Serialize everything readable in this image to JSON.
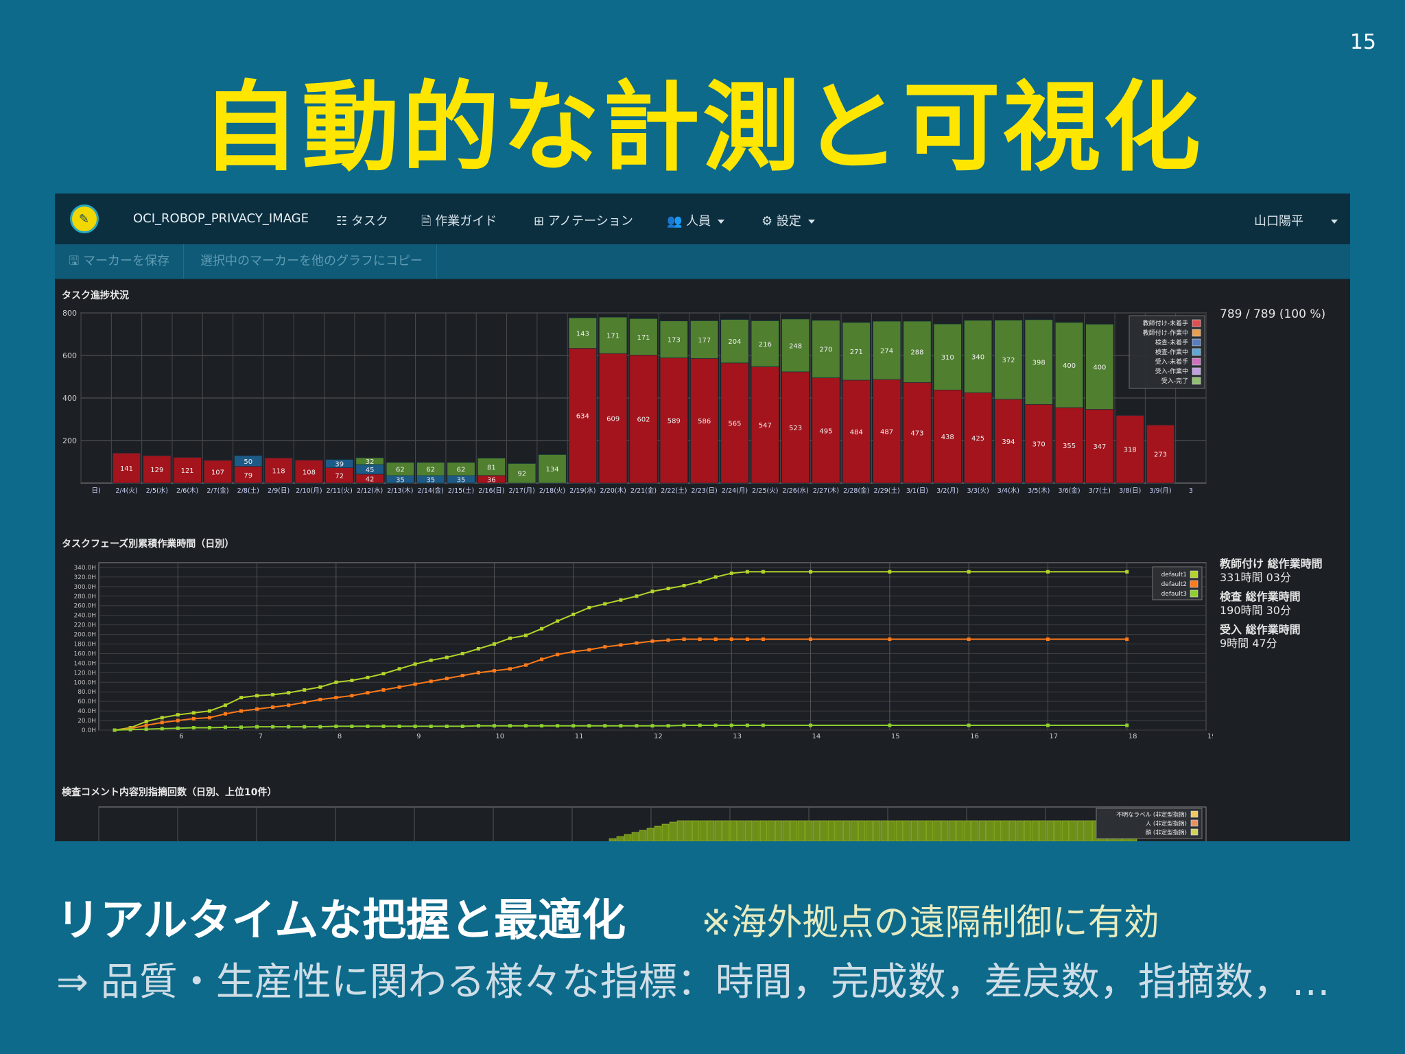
{
  "slide": {
    "number": "15",
    "title": "自動的な計測と可視化",
    "heading": "リアルタイムな把握と最適化",
    "note": "※海外拠点の遠隔制御に有効",
    "line": "⇒ 品質・生産性に関わる様々な指標：時間，完成数，差戻数，指摘数，…"
  },
  "app": {
    "brand": "OCI_ROBOP_PRIVACY_IMAGE",
    "nav": [
      "☷ タスク",
      "🗎 作業ガイド",
      "⊞ アノテーション",
      "👥 人員",
      "⚙ 設定"
    ],
    "user": "山口陽平",
    "toolbar": {
      "save_marker": "🖫 マーカーを保存",
      "copy_marker": "選択中のマーカーを他のグラフにコピー"
    },
    "logo_icon": "pencil-icon"
  },
  "colors": {
    "bar_red": "#a3141c",
    "bar_green": "#4f7f2f",
    "bar_blue": "#1e5a86",
    "line_yellowgreen": "#b3d42a",
    "line_orange": "#ff7a1a",
    "line_green": "#8fcf2e"
  },
  "progress_panel": {
    "title": "タスク進捗状況",
    "summary": "789 / 789 (100 %)"
  },
  "worktime_panel": {
    "title": "タスクフェーズ別累積作業時間（日別）",
    "stats": [
      {
        "label": "教師付け 総作業時間",
        "value": "331時間 03分"
      },
      {
        "label": "検査 総作業時間",
        "value": "190時間 30分"
      },
      {
        "label": "受入 総作業時間",
        "value": "9時間 47分"
      }
    ]
  },
  "comment_panel": {
    "title": "検査コメント内容別指摘回数（日別、上位10件）",
    "legend": [
      "不明なラベル (非定型指摘)",
      "人 (非定型指摘)",
      "顔 (非定型指摘)"
    ]
  },
  "chart_data": [
    {
      "type": "bar",
      "title": "タスク進捗状況",
      "ylim": [
        0,
        800
      ],
      "yticks": [
        200,
        400,
        600,
        800
      ],
      "categories": [
        "日)",
        "2/4(火)",
        "2/5(水)",
        "2/6(木)",
        "2/7(金)",
        "2/8(土)",
        "2/9(日)",
        "2/10(月)",
        "2/11(火)",
        "2/12(水)",
        "2/13(木)",
        "2/14(金)",
        "2/15(土)",
        "2/16(日)",
        "2/17(月)",
        "2/18(火)",
        "2/19(水)",
        "2/20(木)",
        "2/21(金)",
        "2/22(土)",
        "2/23(日)",
        "2/24(月)",
        "2/25(火)",
        "2/26(水)",
        "2/27(木)",
        "2/28(金)",
        "2/29(土)",
        "3/1(日)",
        "3/2(月)",
        "3/3(火)",
        "3/4(水)",
        "3/5(木)",
        "3/6(金)",
        "3/7(土)",
        "3/8(日)",
        "3/9(月)",
        "3"
      ],
      "legend": [
        "教師付け-未着手",
        "教師付け-作業中",
        "検査-未着手",
        "検査-作業中",
        "受入-未着手",
        "受入-作業中",
        "受入-完了"
      ],
      "series": [
        {
          "name": "教師付け-未着手",
          "values": [
            0,
            141,
            129,
            121,
            107,
            79,
            118,
            108,
            72,
            42,
            0,
            0,
            0,
            36,
            0,
            0,
            634,
            609,
            602,
            589,
            586,
            565,
            547,
            523,
            495,
            484,
            487,
            473,
            438,
            425,
            394,
            370,
            355,
            347,
            318,
            273,
            0
          ]
        },
        {
          "name": "検査-未着手",
          "values": [
            0,
            0,
            0,
            0,
            0,
            50,
            0,
            0,
            39,
            45,
            35,
            35,
            35,
            0,
            0,
            0,
            0,
            0,
            0,
            0,
            0,
            0,
            0,
            0,
            0,
            0,
            0,
            0,
            0,
            0,
            0,
            0,
            0,
            0,
            0,
            0,
            0
          ]
        },
        {
          "name": "受入-完了",
          "values": [
            0,
            0,
            0,
            0,
            0,
            0,
            0,
            0,
            0,
            32,
            62,
            62,
            62,
            81,
            92,
            134,
            143,
            171,
            171,
            173,
            177,
            204,
            216,
            248,
            270,
            271,
            274,
            288,
            310,
            340,
            372,
            398,
            400,
            400,
            0,
            0,
            0
          ]
        }
      ]
    },
    {
      "type": "line",
      "title": "タスクフェーズ別累積作業時間（日別）",
      "xticks": [
        "6",
        "7",
        "8",
        "9",
        "10",
        "11",
        "12",
        "13",
        "14",
        "15",
        "16",
        "17",
        "18",
        "19"
      ],
      "yticks": [
        "0.0H",
        "20.0H",
        "40.0H",
        "60.0H",
        "80.0H",
        "100.0H",
        "120.0H",
        "140.0H",
        "160.0H",
        "180.0H",
        "200.0H",
        "220.0H",
        "240.0H",
        "260.0H",
        "280.0H",
        "300.0H",
        "320.0H",
        "340.0H"
      ],
      "ylim": [
        0,
        350
      ],
      "xlim": [
        5,
        19
      ],
      "legend": [
        "default1",
        "default2",
        "default3"
      ],
      "x": [
        5.2,
        5.4,
        5.6,
        5.8,
        6.0,
        6.2,
        6.4,
        6.6,
        6.8,
        7.0,
        7.2,
        7.4,
        7.6,
        7.8,
        8.0,
        8.2,
        8.4,
        8.6,
        8.8,
        9.0,
        9.2,
        9.4,
        9.6,
        9.8,
        10.0,
        10.2,
        10.4,
        10.6,
        10.8,
        11.0,
        11.2,
        11.4,
        11.6,
        11.8,
        12.0,
        12.2,
        12.4,
        12.6,
        12.8,
        13.0,
        13.2,
        13.4,
        14.0,
        15.0,
        16.0,
        17.0,
        18.0
      ],
      "series": [
        {
          "name": "default1",
          "values": [
            0,
            5,
            18,
            26,
            32,
            36,
            40,
            52,
            68,
            72,
            74,
            78,
            84,
            90,
            100,
            104,
            110,
            118,
            128,
            138,
            146,
            152,
            160,
            170,
            180,
            192,
            198,
            212,
            228,
            242,
            256,
            264,
            272,
            280,
            290,
            296,
            302,
            310,
            320,
            328,
            331,
            331,
            331,
            331,
            331,
            331,
            331
          ]
        },
        {
          "name": "default2",
          "values": [
            0,
            3,
            10,
            16,
            20,
            24,
            26,
            34,
            40,
            44,
            48,
            52,
            58,
            64,
            68,
            72,
            78,
            84,
            90,
            96,
            102,
            108,
            114,
            120,
            124,
            128,
            136,
            148,
            158,
            164,
            168,
            174,
            178,
            182,
            186,
            188,
            190,
            190,
            190,
            190,
            190,
            190,
            190,
            190,
            190,
            190,
            190
          ]
        },
        {
          "name": "default3",
          "values": [
            0,
            1,
            2,
            3,
            4,
            5,
            5,
            6,
            6,
            7,
            7,
            7,
            7,
            7,
            8,
            8,
            8,
            8,
            8,
            8,
            8,
            8,
            8,
            9,
            9,
            9,
            9,
            9,
            9,
            9,
            9,
            9,
            9,
            9,
            9,
            9,
            10,
            10,
            10,
            10,
            10,
            10,
            10,
            10,
            10,
            10,
            10
          ]
        }
      ]
    }
  ]
}
